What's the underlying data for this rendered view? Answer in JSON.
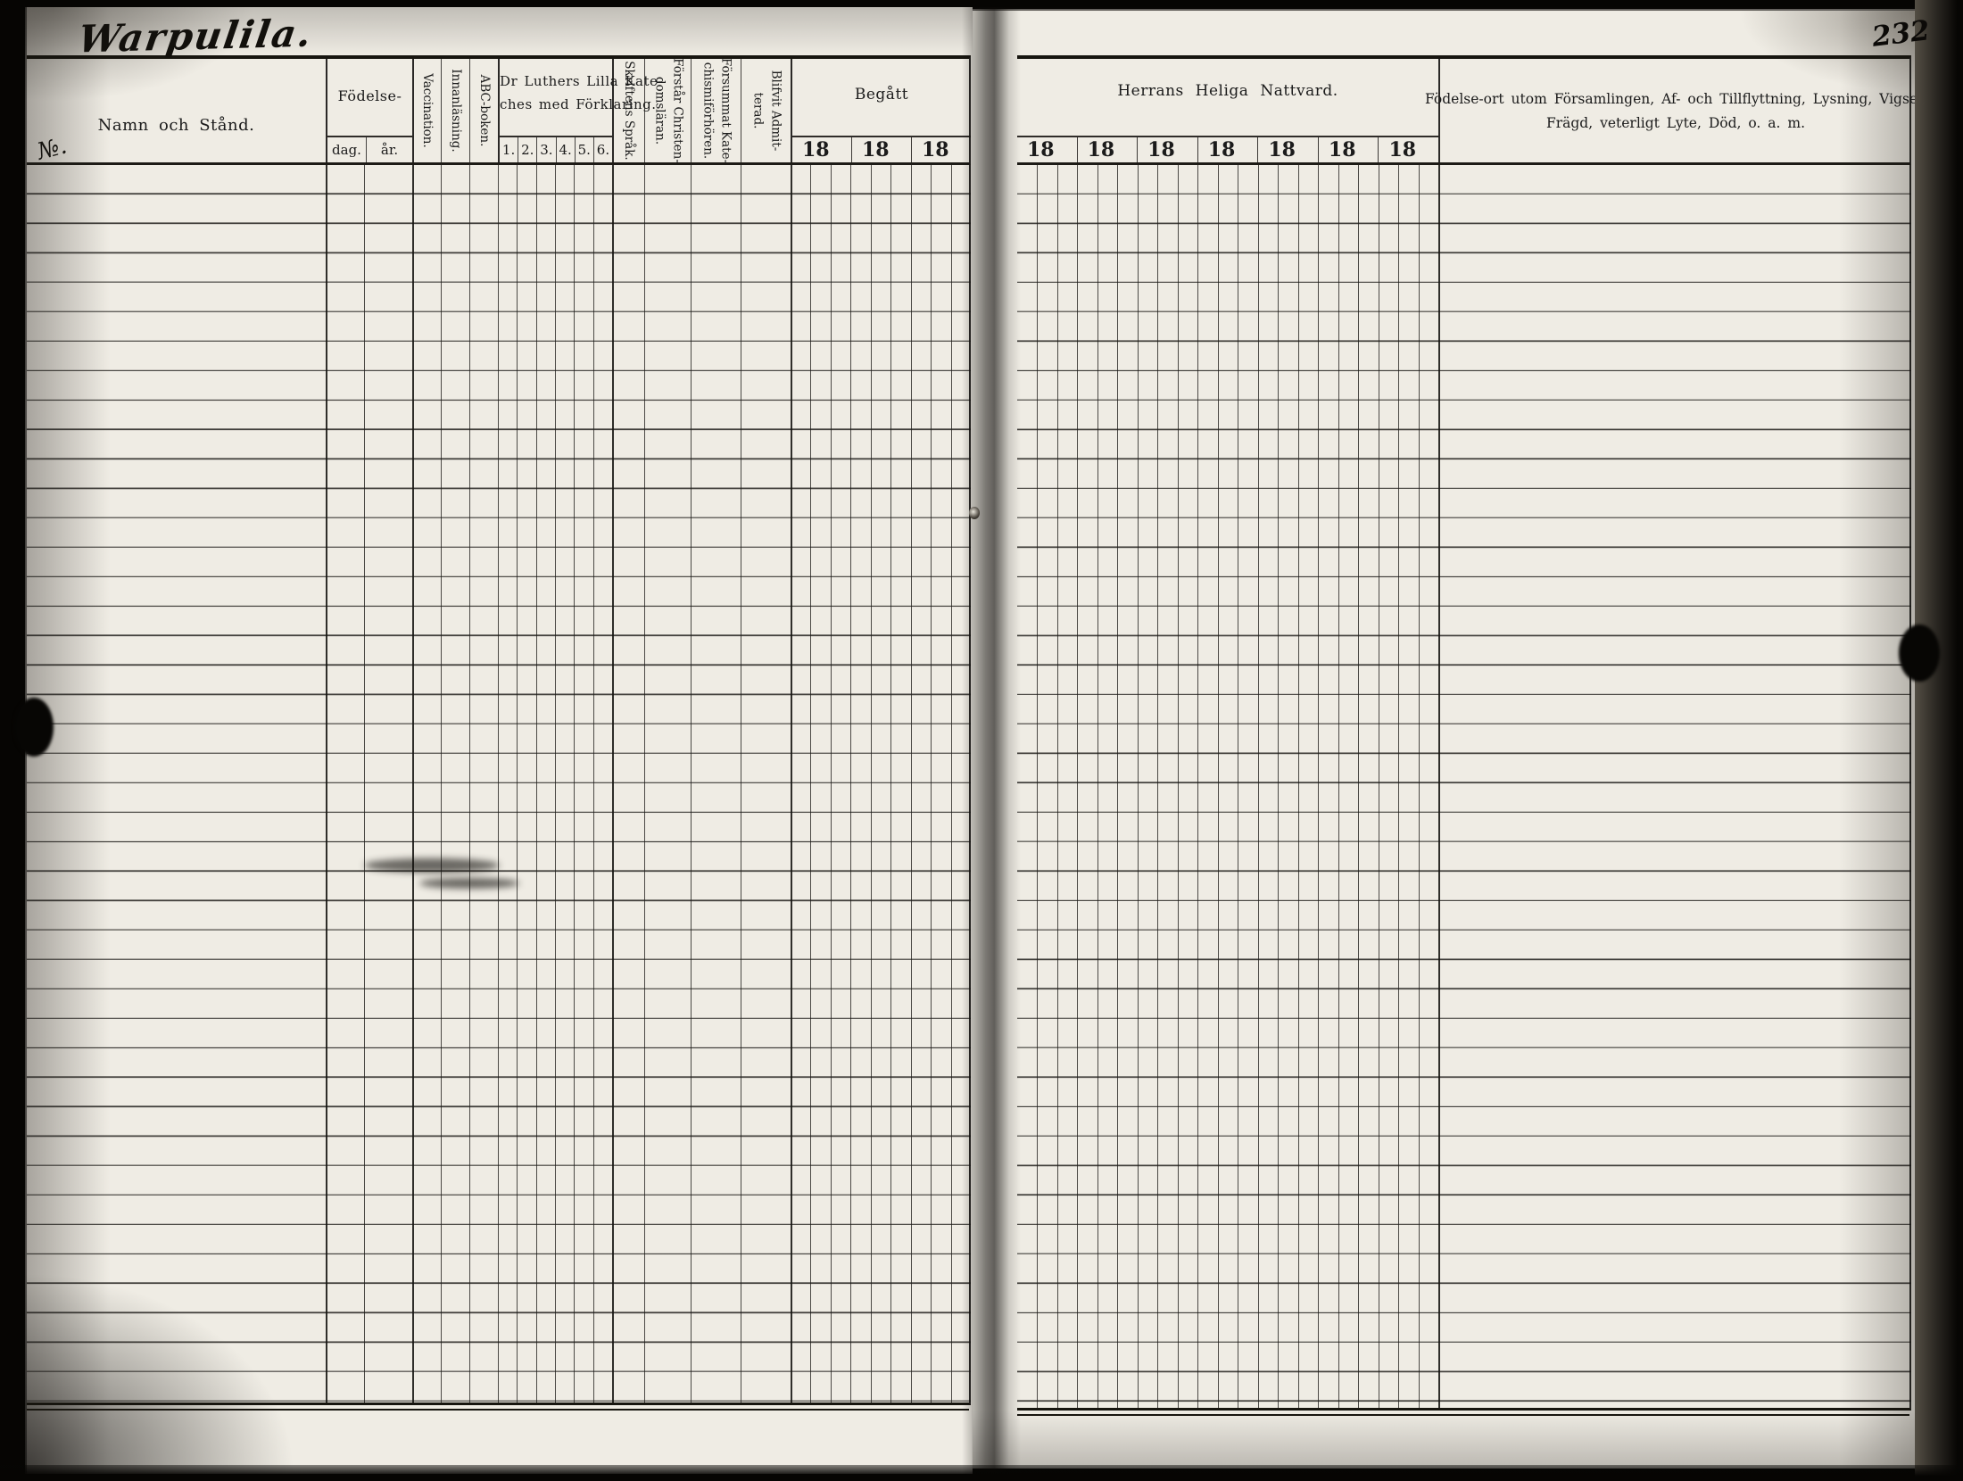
{
  "colors": {
    "paper": "#efece4",
    "ink": "#1b1b1b",
    "scan_edge": "#060503"
  },
  "page": {
    "handwritten_title": "Warpulila.",
    "page_number": "232"
  },
  "left_table": {
    "row_number_label": "№.",
    "name_header": "Namn och Stånd.",
    "birth": {
      "header": "Födelse-",
      "day": "dag.",
      "year": "år."
    },
    "vaccination_header": "Vaccination.",
    "reading_header": "Innanläsning.",
    "abc_book_header": "ABC-boken.",
    "catechism": {
      "line1": "Dr Luthers Lilla Kate-",
      "line2": "ches med Förklaring.",
      "grades": [
        "1.",
        "2.",
        "3.",
        "4.",
        "5.",
        "6."
      ]
    },
    "scripture_language_header": "Skriftens Språk.",
    "understands_doctrine": {
      "line1": "Förstår Christen-",
      "line2": "domsläran."
    },
    "missed_catechism": {
      "line1": "Försummat Kate-",
      "line2": "chismiförhören."
    },
    "admitted": {
      "line1": "Blifvit Admit-",
      "line2": "terad."
    },
    "communion": {
      "header": "Begått",
      "years": [
        "18",
        "18",
        "18"
      ]
    }
  },
  "right_table": {
    "communion": {
      "header": "Herrans Heliga Nattvard.",
      "years": [
        "18",
        "18",
        "18",
        "18",
        "18",
        "18",
        "18"
      ]
    },
    "notes": {
      "line1": "Födelse-ort utom Församlingen, Af- och Tillflyttning, Lysning, Vigsel,",
      "line2": "Frägd, veterligt Lyte, Död, o. a. m."
    }
  }
}
